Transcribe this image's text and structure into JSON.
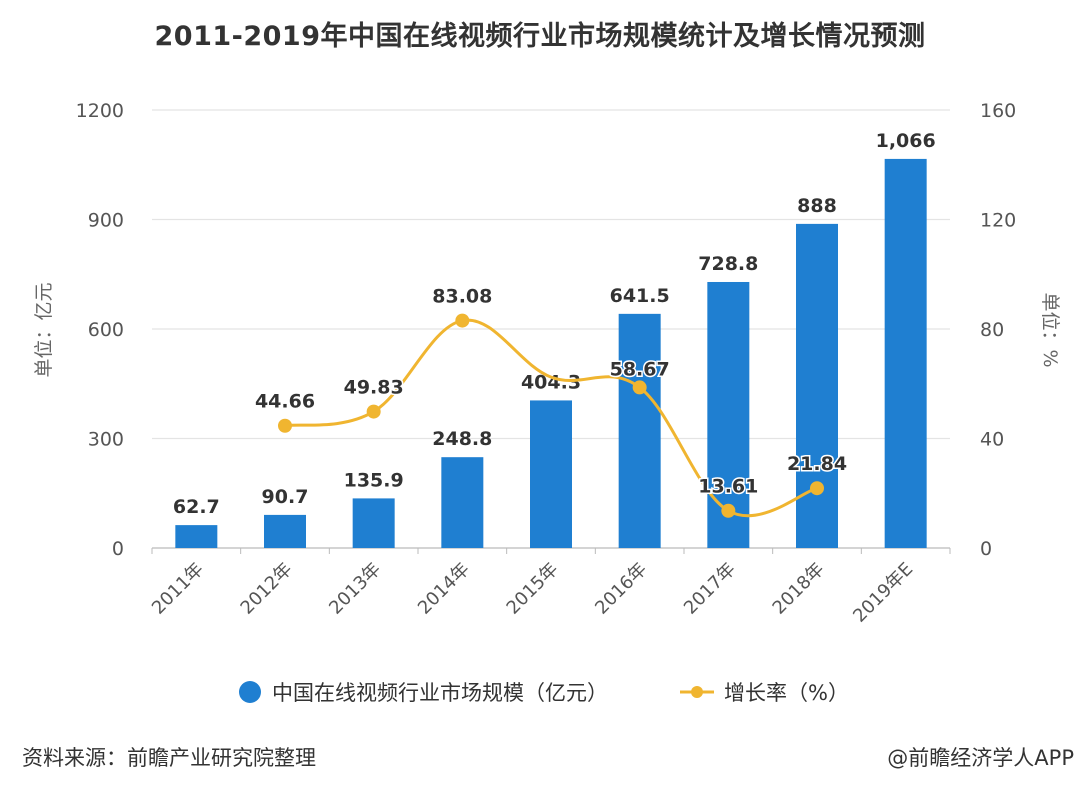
{
  "chart_data": {
    "type": "bar",
    "title": "2011-2019年中国在线视频行业市场规模统计及增长情况预测",
    "categories": [
      "2011年",
      "2012年",
      "2013年",
      "2014年",
      "2015年",
      "2016年",
      "2017年",
      "2018年",
      "2019年E"
    ],
    "series": [
      {
        "name": "中国在线视频行业市场规模（亿元）",
        "type": "bar",
        "axis": "left",
        "color": "#1f7fd1",
        "values": [
          62.7,
          90.7,
          135.9,
          248.8,
          404.3,
          641.5,
          728.8,
          888,
          1066
        ],
        "labels": [
          "62.7",
          "90.7",
          "135.9",
          "248.8",
          "404.3",
          "641.5",
          "728.8",
          "888",
          "1,066"
        ]
      },
      {
        "name": "增长率（%）",
        "type": "line",
        "axis": "right",
        "color": "#f0b530",
        "values": [
          null,
          44.66,
          49.83,
          83.08,
          62.41,
          58.67,
          13.61,
          21.84,
          null
        ],
        "labels": [
          null,
          "44.66",
          "49.83",
          "83.08",
          null,
          "58.67",
          "13.61",
          "21.84",
          null
        ]
      }
    ],
    "ylabel": "单位：亿元",
    "ylim": [
      0,
      1200
    ],
    "yticks": [
      "0",
      "300",
      "600",
      "900",
      "1200"
    ],
    "y2label": "单位：%",
    "y2lim": [
      0,
      160
    ],
    "y2ticks": [
      "0",
      "40",
      "80",
      "120",
      "160"
    ],
    "grid": true,
    "legend_position": "bottom"
  },
  "legend": {
    "bar_label": "中国在线视频行业市场规模（亿元）",
    "line_label": "增长率（%）"
  },
  "footer": {
    "source": "资料来源：前瞻产业研究院整理",
    "credit": "@前瞻经济学人APP"
  }
}
